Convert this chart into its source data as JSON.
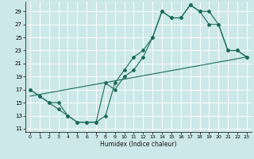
{
  "title": "",
  "xlabel": "Humidex (Indice chaleur)",
  "background_color": "#cce8e8",
  "grid_color": "#ffffff",
  "line_color": "#1a6b5a",
  "xlim": [
    -0.5,
    23.5
  ],
  "ylim": [
    10.5,
    30.5
  ],
  "yticks": [
    11,
    13,
    15,
    17,
    19,
    21,
    23,
    25,
    27,
    29
  ],
  "xticks": [
    0,
    1,
    2,
    3,
    4,
    5,
    6,
    7,
    8,
    9,
    10,
    11,
    12,
    13,
    14,
    15,
    16,
    17,
    18,
    19,
    20,
    21,
    22,
    23
  ],
  "line1_x": [
    0,
    1,
    2,
    3,
    4,
    5,
    6,
    7,
    8,
    9,
    10,
    11,
    12,
    13,
    14,
    15,
    16,
    17,
    18,
    19,
    20,
    21,
    22,
    23
  ],
  "line1_y": [
    17,
    16,
    15,
    14,
    13,
    12,
    12,
    12,
    13,
    18,
    20,
    22,
    23,
    25,
    29,
    28,
    28,
    30,
    29,
    29,
    27,
    23,
    23,
    22
  ],
  "line2_x": [
    0,
    1,
    2,
    3,
    4,
    5,
    6,
    7,
    8,
    9,
    10,
    11,
    12,
    13,
    14,
    15,
    16,
    17,
    18,
    19,
    20,
    21,
    22,
    23
  ],
  "line2_y": [
    17,
    16,
    15,
    15,
    13,
    12,
    12,
    12,
    18,
    17,
    19,
    20,
    22,
    25,
    29,
    28,
    28,
    30,
    29,
    27,
    27,
    23,
    23,
    22
  ],
  "line3_x": [
    0,
    23
  ],
  "line3_y": [
    16,
    22
  ]
}
